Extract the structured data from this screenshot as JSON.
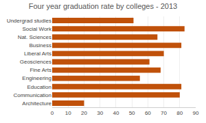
{
  "chart_data": {
    "type": "bar",
    "orientation": "horizontal",
    "title": "Four year graduation rate by colleges - 2013",
    "categories": [
      "Architecture",
      "Communication",
      "Education",
      "Engineering",
      "Fine Arts",
      "Geosciences",
      "Liberal Arts",
      "Business",
      "Nat. Sciences",
      "Social Work",
      "Undergrad studies"
    ],
    "values": [
      20,
      80,
      81,
      55,
      68,
      61,
      70,
      81,
      66,
      83,
      51
    ],
    "color": "#C0510A",
    "xlim": [
      0,
      90
    ],
    "xticks": [
      0,
      10,
      20,
      30,
      40,
      50,
      60,
      70,
      80,
      90
    ],
    "grid": true
  }
}
